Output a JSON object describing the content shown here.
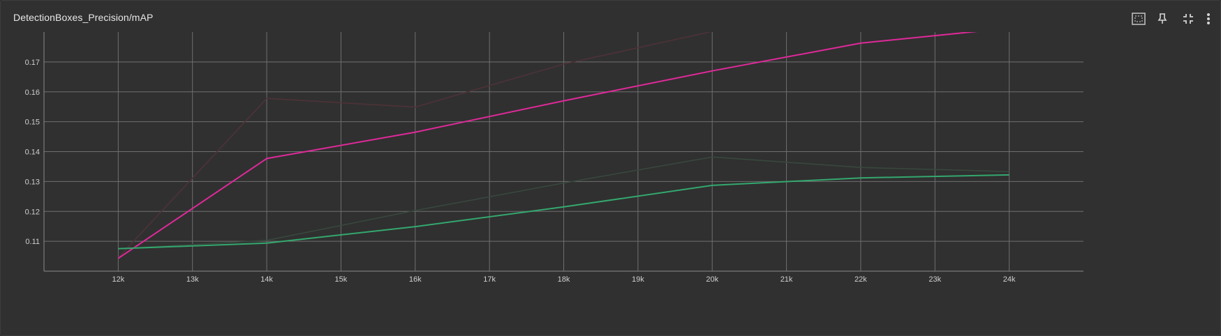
{
  "panel": {
    "title": "DetectionBoxes_Precision/mAP",
    "icons": {
      "select": "dashed-square-select-icon",
      "pin": "pin-icon",
      "collapse": "fullscreen-exit-icon",
      "more": "more-vert-icon"
    }
  },
  "chart_data": {
    "type": "line",
    "title": "DetectionBoxes_Precision/mAP",
    "xlabel": "",
    "ylabel": "",
    "xlim": [
      11000,
      25000
    ],
    "ylim": [
      0.1,
      0.18
    ],
    "x_ticks": [
      12000,
      13000,
      14000,
      15000,
      16000,
      17000,
      18000,
      19000,
      20000,
      21000,
      22000,
      23000,
      24000
    ],
    "x_tick_labels": [
      "12k",
      "13k",
      "14k",
      "15k",
      "16k",
      "17k",
      "18k",
      "19k",
      "20k",
      "21k",
      "22k",
      "23k",
      "24k"
    ],
    "y_ticks": [
      0.11,
      0.12,
      0.13,
      0.14,
      0.15,
      0.16,
      0.17
    ],
    "y_tick_labels": [
      "0.11",
      "0.12",
      "0.13",
      "0.14",
      "0.15",
      "0.16",
      "0.17"
    ],
    "grid": true,
    "series": [
      {
        "name": "pink-raw",
        "color": "#4e3238",
        "x": [
          12000,
          14000,
          16000,
          18000,
          20000
        ],
        "y": [
          0.1045,
          0.1578,
          0.1549,
          0.1693,
          0.1802
        ]
      },
      {
        "name": "pink-smoothed",
        "color": "#e0299a",
        "x": [
          12000,
          14000,
          16000,
          18000,
          20000,
          22000,
          24000
        ],
        "y": [
          0.1043,
          0.1377,
          0.1465,
          0.157,
          0.167,
          0.1763,
          0.1813
        ]
      },
      {
        "name": "green-raw",
        "color": "#38483e",
        "x": [
          12000,
          14000,
          16000,
          18000,
          20000,
          22000,
          24000
        ],
        "y": [
          0.1075,
          0.1103,
          0.1203,
          0.1295,
          0.1382,
          0.1347,
          0.1333
        ]
      },
      {
        "name": "green-smoothed",
        "color": "#33a86e",
        "x": [
          12000,
          14000,
          16000,
          18000,
          20000,
          22000,
          24000
        ],
        "y": [
          0.1075,
          0.1094,
          0.1149,
          0.1215,
          0.1287,
          0.1312,
          0.1322
        ]
      }
    ]
  }
}
